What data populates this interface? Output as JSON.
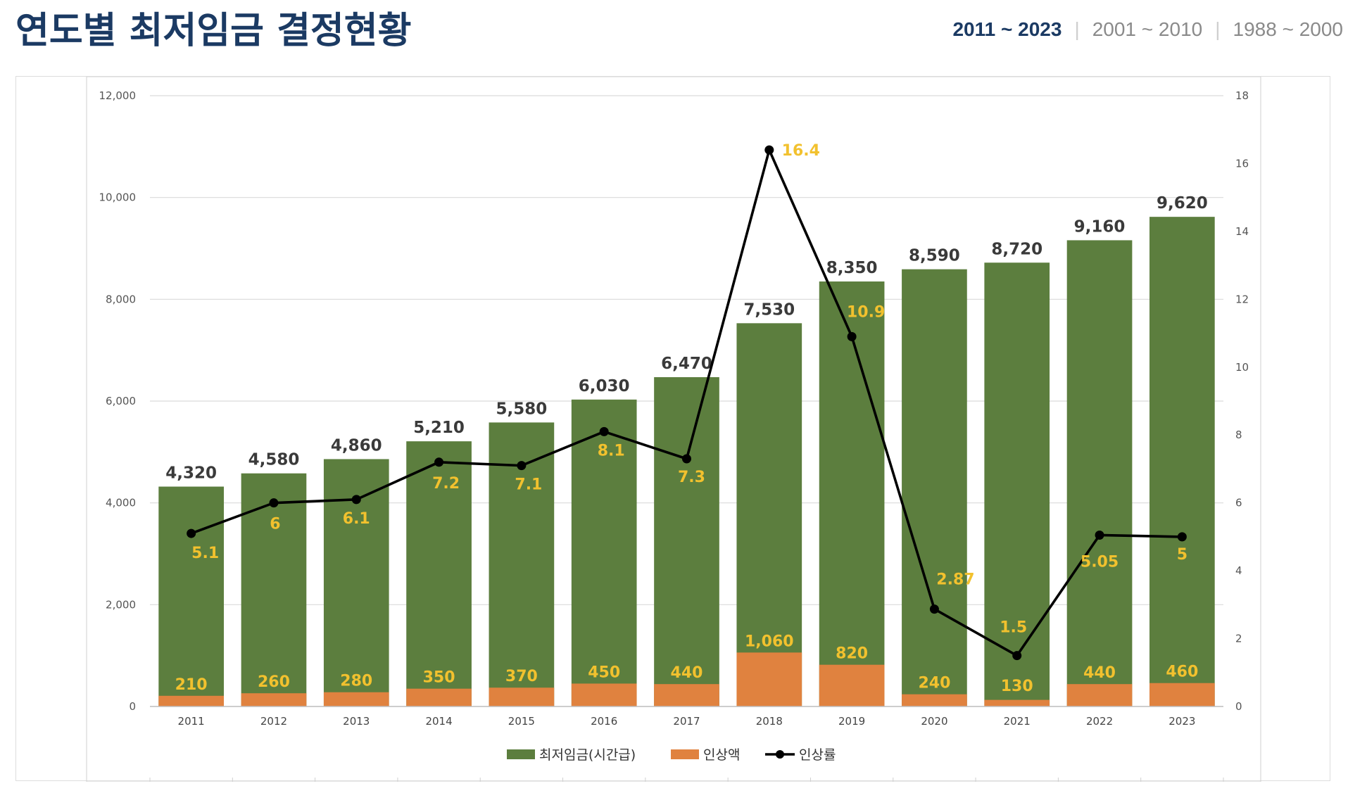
{
  "header": {
    "title": "연도별 최저임금 결정현황",
    "tabs": [
      {
        "label": "2011 ~ 2023",
        "active": true
      },
      {
        "label": "2001 ~ 2010",
        "active": false
      },
      {
        "label": "1988 ~ 2000",
        "active": false
      }
    ],
    "separator": "|"
  },
  "chart_data": {
    "type": "bar",
    "categories": [
      "2011",
      "2012",
      "2013",
      "2014",
      "2015",
      "2016",
      "2017",
      "2018",
      "2019",
      "2020",
      "2021",
      "2022",
      "2023"
    ],
    "series": [
      {
        "name": "최저임금(시간급)",
        "type": "bar",
        "axis": "left",
        "color": "#5c7e3e",
        "values": [
          4320,
          4580,
          4860,
          5210,
          5580,
          6030,
          6470,
          7530,
          8350,
          8590,
          8720,
          9160,
          9620
        ],
        "labels": [
          "4,320",
          "4,580",
          "4,860",
          "5,210",
          "5,580",
          "6,030",
          "6,470",
          "7,530",
          "8,350",
          "8,590",
          "8,720",
          "9,160",
          "9,620"
        ]
      },
      {
        "name": "인상액",
        "type": "bar",
        "axis": "left",
        "color": "#e0823f",
        "values": [
          210,
          260,
          280,
          350,
          370,
          450,
          440,
          1060,
          820,
          240,
          130,
          440,
          460
        ],
        "labels": [
          "210",
          "260",
          "280",
          "350",
          "370",
          "450",
          "440",
          "1,060",
          "820",
          "240",
          "130",
          "440",
          "460"
        ]
      },
      {
        "name": "인상률",
        "type": "line",
        "axis": "right",
        "color": "#000000",
        "values": [
          5.1,
          6,
          6.1,
          7.2,
          7.1,
          8.1,
          7.3,
          16.4,
          10.9,
          2.87,
          1.5,
          5.05,
          5
        ],
        "labels": [
          "5.1",
          "6",
          "6.1",
          "7.2",
          "7.1",
          "8.1",
          "7.3",
          "16.4",
          "10.9",
          "2.87",
          "1.5",
          "5.05",
          "5"
        ]
      }
    ],
    "y_left": {
      "ylim": [
        0,
        12000
      ],
      "ticks": [
        "0",
        "2,000",
        "4,000",
        "6,000",
        "8,000",
        "10,000",
        "12,000"
      ]
    },
    "y_right": {
      "ylim": [
        0,
        18
      ],
      "ticks": [
        "0",
        "2",
        "4",
        "6",
        "8",
        "10",
        "12",
        "14",
        "16",
        "18"
      ]
    },
    "grid": true,
    "legend_position": "bottom",
    "label_color": "#f2c12e",
    "title": "",
    "xlabel": "",
    "ylabel": ""
  }
}
